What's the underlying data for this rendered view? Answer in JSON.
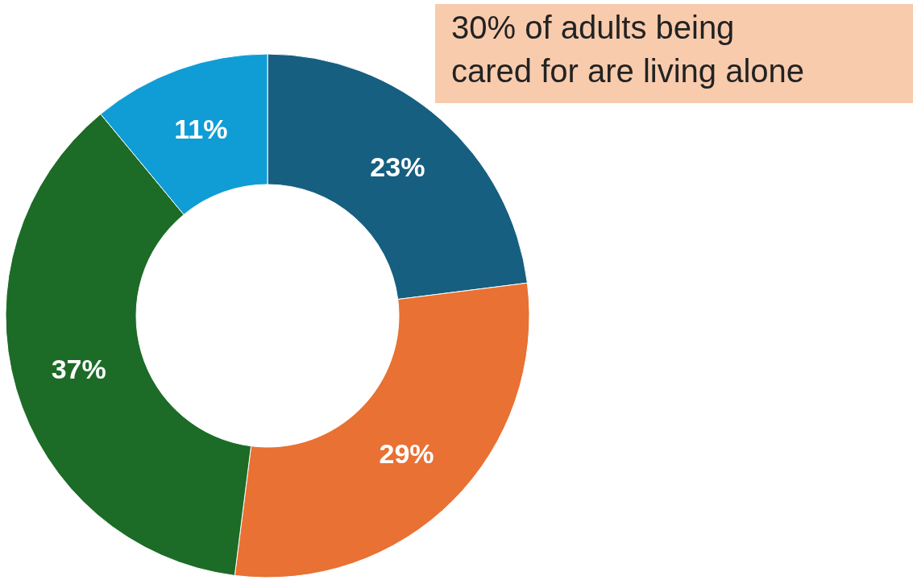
{
  "chart_data": {
    "type": "donut",
    "categories": [
      null,
      null,
      null,
      null
    ],
    "values": [
      23,
      29,
      37,
      11
    ],
    "colors": [
      "#165f80",
      "#e87133",
      "#1c6b27",
      "#109dd5"
    ],
    "value_labels": [
      "23%",
      "29%",
      "37%",
      "11%"
    ],
    "annotations": [
      "30% of adults being\ncared for are living alone"
    ]
  }
}
